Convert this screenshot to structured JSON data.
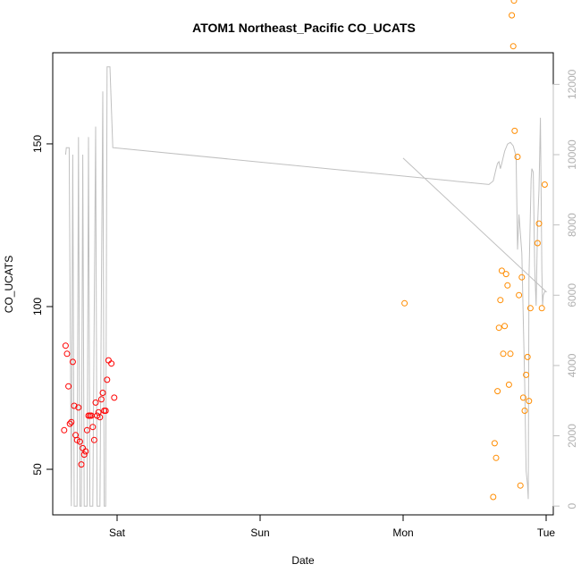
{
  "chart_data": {
    "type": "scatter",
    "title": "ATOM1 Northeast_Pacific CO_UCATS",
    "xlabel": "Date",
    "ylabel": "CO_UCATS",
    "x_unit": "days",
    "xlim": [
      -0.45,
      3.05
    ],
    "ylim": [
      36,
      178
    ],
    "y_ticks": [
      50,
      100,
      150
    ],
    "x_ticks": [
      {
        "value": 0,
        "label": "Sat"
      },
      {
        "value": 1,
        "label": "Sun"
      },
      {
        "value": 2,
        "label": "Mon"
      },
      {
        "value": 3,
        "label": "Tue"
      }
    ],
    "y2lim": [
      -250,
      12900
    ],
    "y2_ticks": [
      0,
      2000,
      4000,
      6000,
      8000,
      10000,
      12000
    ],
    "colors": {
      "series1": "#ff0000",
      "series2": "#ff8c00",
      "altitude": "#c0c0c0"
    },
    "series": [
      {
        "points": [
          [
            -0.37,
            62
          ],
          [
            -0.36,
            88
          ],
          [
            -0.35,
            85.5
          ],
          [
            -0.34,
            75.5
          ],
          [
            -0.33,
            64
          ],
          [
            -0.32,
            64.5
          ],
          [
            -0.31,
            83
          ],
          [
            -0.3,
            69.5
          ],
          [
            -0.29,
            60.5
          ],
          [
            -0.28,
            59
          ],
          [
            -0.27,
            69
          ],
          [
            -0.26,
            58.5
          ],
          [
            -0.25,
            51.5
          ],
          [
            -0.24,
            56.5
          ],
          [
            -0.23,
            54.5
          ],
          [
            -0.22,
            55.5
          ],
          [
            -0.21,
            62
          ],
          [
            -0.2,
            66.5
          ],
          [
            -0.19,
            66.5
          ],
          [
            -0.18,
            66.5
          ],
          [
            -0.17,
            63
          ],
          [
            -0.16,
            59
          ],
          [
            -0.15,
            70.5
          ],
          [
            -0.14,
            66.5
          ],
          [
            -0.13,
            67.5
          ],
          [
            -0.12,
            66
          ],
          [
            -0.11,
            71.5
          ],
          [
            -0.1,
            73.5
          ],
          [
            -0.09,
            68
          ],
          [
            -0.08,
            68
          ],
          [
            -0.07,
            77.5
          ],
          [
            -0.06,
            83.5
          ],
          [
            -0.04,
            82.5
          ],
          [
            -0.02,
            72
          ]
        ]
      },
      {
        "points": [
          [
            2.01,
            101
          ],
          [
            2.63,
            41.5
          ],
          [
            2.64,
            58
          ],
          [
            2.65,
            53.5
          ],
          [
            2.66,
            74
          ],
          [
            2.67,
            93.5
          ],
          [
            2.68,
            102
          ],
          [
            2.69,
            111
          ],
          [
            2.7,
            85.5
          ],
          [
            2.71,
            94
          ],
          [
            2.72,
            110
          ],
          [
            2.73,
            106.5
          ],
          [
            2.74,
            76
          ],
          [
            2.75,
            85.5
          ],
          [
            2.76,
            189.5
          ],
          [
            2.77,
            180
          ],
          [
            2.78,
            154
          ],
          [
            2.8,
            146
          ],
          [
            2.81,
            103.5
          ],
          [
            2.82,
            45
          ],
          [
            2.83,
            109
          ],
          [
            2.84,
            72
          ],
          [
            2.85,
            68
          ],
          [
            2.86,
            79
          ],
          [
            2.87,
            84.5
          ],
          [
            2.88,
            71
          ],
          [
            2.89,
            99.5
          ],
          [
            2.94,
            119.5
          ],
          [
            2.95,
            125.5
          ],
          [
            2.97,
            99.5
          ],
          [
            2.99,
            137.5
          ],
          [
            2.775,
            194
          ]
        ]
      }
    ],
    "altitude_line": [
      [
        -0.36,
        10000
      ],
      [
        -0.355,
        10200
      ],
      [
        -0.34,
        10200
      ],
      [
        -0.335,
        10200
      ],
      [
        -0.32,
        0
      ],
      [
        -0.31,
        10000
      ],
      [
        -0.3,
        0
      ],
      [
        -0.28,
        0
      ],
      [
        -0.27,
        10500
      ],
      [
        -0.26,
        0
      ],
      [
        -0.25,
        0
      ],
      [
        -0.24,
        10000
      ],
      [
        -0.23,
        0
      ],
      [
        -0.21,
        0
      ],
      [
        -0.2,
        10500
      ],
      [
        -0.19,
        0
      ],
      [
        -0.17,
        0
      ],
      [
        -0.15,
        10800
      ],
      [
        -0.14,
        0
      ],
      [
        -0.12,
        0
      ],
      [
        -0.1,
        11800
      ],
      [
        -0.09,
        0
      ],
      [
        -0.08,
        0
      ],
      [
        -0.07,
        12500
      ],
      [
        -0.05,
        12500
      ],
      [
        -0.03,
        10200
      ],
      [
        2.6,
        9150
      ],
      [
        2.63,
        9250
      ],
      [
        2.65,
        9600
      ],
      [
        2.66,
        9750
      ],
      [
        2.67,
        9800
      ],
      [
        2.68,
        9600
      ],
      [
        2.69,
        9750
      ],
      [
        2.71,
        10100
      ],
      [
        2.73,
        10300
      ],
      [
        2.75,
        10350
      ],
      [
        2.77,
        10250
      ],
      [
        2.78,
        10100
      ],
      [
        2.79,
        9950
      ],
      [
        2.8,
        7300
      ],
      [
        2.81,
        8300
      ],
      [
        2.83,
        7200
      ],
      [
        2.85,
        3500
      ],
      [
        2.86,
        1000
      ],
      [
        2.87,
        600
      ],
      [
        2.875,
        200
      ],
      [
        2.88,
        6500
      ],
      [
        2.895,
        9300
      ],
      [
        2.9,
        9600
      ],
      [
        2.91,
        9500
      ],
      [
        2.92,
        6800
      ],
      [
        2.93,
        5700
      ],
      [
        2.94,
        8000
      ],
      [
        2.95,
        9000
      ],
      [
        2.96,
        11050
      ],
      [
        2.97,
        6700
      ],
      [
        2.975,
        5700
      ],
      [
        2.98,
        6000
      ],
      [
        2.99,
        6100
      ],
      [
        3.0,
        6100
      ],
      [
        2.0,
        9900
      ]
    ]
  }
}
